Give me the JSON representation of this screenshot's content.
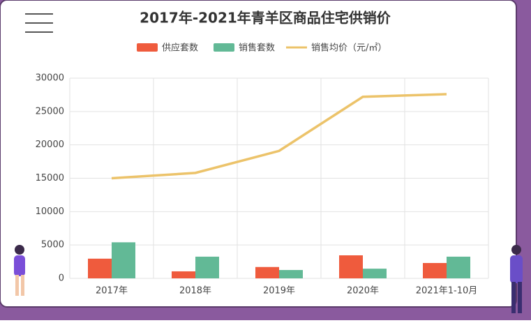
{
  "chart_data": {
    "type": "bar_line",
    "title": "2017年-2021年青羊区商品住宅供销价",
    "categories": [
      "2017年",
      "2018年",
      "2019年",
      "2020年",
      "2021年1-10月"
    ],
    "series": [
      {
        "name": "供应套数",
        "type": "bar",
        "color": "#ef5b3d",
        "values": [
          2950,
          1050,
          1700,
          3450,
          2300
        ]
      },
      {
        "name": "销售套数",
        "type": "bar",
        "color": "#62b996",
        "values": [
          5400,
          3250,
          1250,
          1450,
          3250
        ]
      },
      {
        "name": "销售均价（元/㎡）",
        "type": "line",
        "color": "#ecc36a",
        "values": [
          15000,
          15800,
          19100,
          27200,
          27600
        ]
      }
    ],
    "ylim": [
      0,
      30000
    ],
    "yticks": [
      0,
      5000,
      10000,
      15000,
      20000,
      25000,
      30000
    ],
    "grid": true
  }
}
